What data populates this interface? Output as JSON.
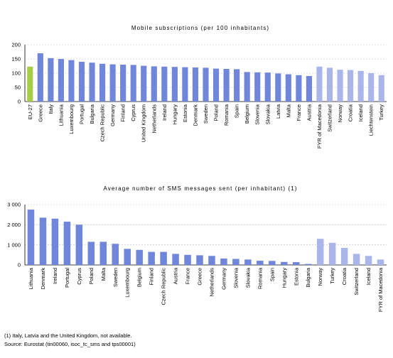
{
  "colors": {
    "eu": "#a6cc48",
    "member": "#6f86da",
    "other": "#aab5e9"
  },
  "chart_data": [
    {
      "type": "bar",
      "title": "Mobile subscriptions (per 100 inhabitants)",
      "ylim": [
        0,
        200
      ],
      "yticks": [
        0,
        50,
        100,
        150,
        200
      ],
      "grid": true,
      "categories": [
        "EU-27",
        "Greece",
        "Italy",
        "Lithuania",
        "Luxembourg",
        "Portugal",
        "Bulgaria",
        "Czech Republic",
        "Germany",
        "Finland",
        "Cyprus",
        "United Kingdom",
        "Netherlands",
        "Ireland",
        "Hungary",
        "Estonia",
        "Denmark",
        "Sweden",
        "Poland",
        "Romania",
        "Spain",
        "Belgium",
        "Slovenia",
        "Slovakia",
        "Latvia",
        "Malta",
        "France",
        "Austria",
        "FYR of Macedonia",
        "Switzerland",
        "Norway",
        "Croatia",
        "Iceland",
        "Liechtenstein",
        "Turkey"
      ],
      "values": [
        123,
        170,
        153,
        150,
        146,
        140,
        137,
        133,
        131,
        130,
        129,
        126,
        124,
        123,
        122,
        121,
        120,
        119,
        116,
        115,
        114,
        104,
        103,
        102,
        99,
        96,
        93,
        90,
        123,
        119,
        112,
        111,
        108,
        100,
        93
      ],
      "groups": [
        "eu",
        "member",
        "member",
        "member",
        "member",
        "member",
        "member",
        "member",
        "member",
        "member",
        "member",
        "member",
        "member",
        "member",
        "member",
        "member",
        "member",
        "member",
        "member",
        "member",
        "member",
        "member",
        "member",
        "member",
        "member",
        "member",
        "member",
        "member",
        "other",
        "other",
        "other",
        "other",
        "other",
        "other",
        "other"
      ]
    },
    {
      "type": "bar",
      "title": "Average number of SMS messages sent (per inhabitant) (1)",
      "ylim": [
        0,
        3000
      ],
      "yticks": [
        0,
        1000,
        2000,
        3000
      ],
      "ytick_labels": [
        "0",
        "1 000",
        "2 000",
        "3 000"
      ],
      "grid": true,
      "categories": [
        "Lithuania",
        "Denmark",
        "Ireland",
        "Portugal",
        "Cyprus",
        "Poland",
        "Malta",
        "Sweden",
        "Luxembourg",
        "Belgium",
        "Finland",
        "Czech Republic",
        "Austria",
        "France",
        "Greece",
        "Netherlands",
        "Germany",
        "Slovenia",
        "Slovakia",
        "Romania",
        "Spain",
        "Hungary",
        "Estonia",
        "Bulgaria",
        "Norway",
        "Turkey",
        "Croatia",
        "Switzerland",
        "Iceland",
        "FYR of Macedonia"
      ],
      "values": [
        2750,
        2350,
        2300,
        2150,
        2000,
        1150,
        1150,
        1050,
        800,
        750,
        650,
        650,
        550,
        500,
        480,
        450,
        320,
        300,
        270,
        210,
        200,
        150,
        140,
        50,
        1300,
        1100,
        850,
        550,
        450,
        270
      ],
      "groups": [
        "member",
        "member",
        "member",
        "member",
        "member",
        "member",
        "member",
        "member",
        "member",
        "member",
        "member",
        "member",
        "member",
        "member",
        "member",
        "member",
        "member",
        "member",
        "member",
        "member",
        "member",
        "member",
        "member",
        "member",
        "other",
        "other",
        "other",
        "other",
        "other",
        "other"
      ]
    }
  ],
  "footnotes": {
    "note1": "(1) Italy, Latvia and the United Kingdom, not available.",
    "source": "Source: Eurostat (tin00060, isoc_tc_sms and tps00001)"
  }
}
